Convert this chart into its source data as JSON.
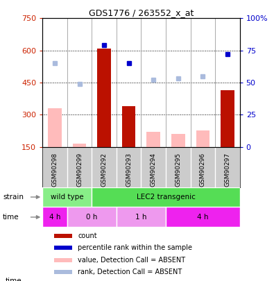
{
  "title": "GDS1776 / 263552_x_at",
  "samples": [
    "GSM90298",
    "GSM90299",
    "GSM90292",
    "GSM90293",
    "GSM90294",
    "GSM90295",
    "GSM90296",
    "GSM90297"
  ],
  "count_values": [
    null,
    null,
    610,
    340,
    null,
    null,
    null,
    415
  ],
  "count_absent_values": [
    330,
    165,
    null,
    null,
    220,
    210,
    225,
    null
  ],
  "rank_values_right": [
    null,
    null,
    79,
    65,
    null,
    null,
    null,
    72
  ],
  "rank_absent_values_right": [
    65,
    49,
    null,
    null,
    52,
    53,
    55,
    null
  ],
  "left_ylim": [
    150,
    750
  ],
  "left_yticks": [
    150,
    300,
    450,
    600,
    750
  ],
  "right_ylim": [
    0,
    100
  ],
  "right_yticks": [
    0,
    25,
    50,
    75,
    100
  ],
  "strain_labels": [
    {
      "label": "wild type",
      "start": 0,
      "end": 2,
      "color": "#88ee88"
    },
    {
      "label": "LEC2 transgenic",
      "start": 2,
      "end": 8,
      "color": "#55dd55"
    }
  ],
  "time_labels": [
    {
      "label": "4 h",
      "start": 0,
      "end": 1,
      "color": "#ee22ee"
    },
    {
      "label": "0 h",
      "start": 1,
      "end": 3,
      "color": "#ee99ee"
    },
    {
      "label": "1 h",
      "start": 3,
      "end": 5,
      "color": "#ee99ee"
    },
    {
      "label": "4 h",
      "start": 5,
      "end": 8,
      "color": "#ee22ee"
    }
  ],
  "count_color": "#bb1100",
  "count_absent_color": "#ffbbbb",
  "rank_color": "#0000cc",
  "rank_absent_color": "#aabbdd",
  "bar_width": 0.55,
  "dotted_gridlines": [
    300,
    450,
    600
  ],
  "left_ylabel_color": "#cc2200",
  "right_ylabel_color": "#0000cc",
  "bg_color": "#ffffff",
  "sample_strip_color": "#cccccc"
}
